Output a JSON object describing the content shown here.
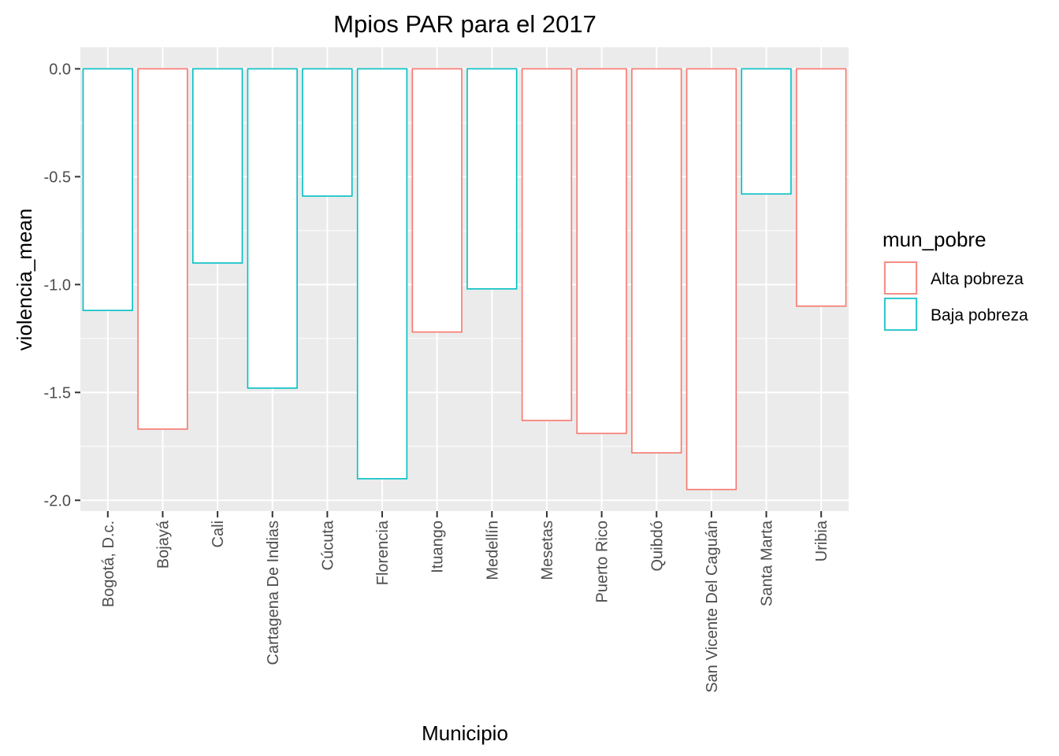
{
  "chart_data": {
    "type": "bar",
    "title": "Mpios PAR para el 2017",
    "xlabel": "Municipio",
    "ylabel": "violencia_mean",
    "ylim": [
      -2.05,
      0.1
    ],
    "y_ticks": [
      0.0,
      -0.5,
      -1.0,
      -1.5,
      -2.0
    ],
    "y_tick_labels": [
      "0.0",
      "-0.5",
      "-1.0",
      "-1.5",
      "-2.0"
    ],
    "categories": [
      "Bogotá, D.c.",
      "Bojayá",
      "Cali",
      "Cartagena De Indias",
      "Cúcuta",
      "Florencia",
      "Ituango",
      "Medellín",
      "Mesetas",
      "Puerto Rico",
      "Quibdó",
      "San Vicente Del Caguán",
      "Santa Marta",
      "Uribia"
    ],
    "values": [
      -1.12,
      -1.67,
      -0.9,
      -1.48,
      -0.59,
      -1.9,
      -1.22,
      -1.02,
      -1.63,
      -1.69,
      -1.78,
      -1.95,
      -0.58,
      -1.1
    ],
    "groups": [
      "Baja pobreza",
      "Alta pobreza",
      "Baja pobreza",
      "Baja pobreza",
      "Baja pobreza",
      "Baja pobreza",
      "Alta pobreza",
      "Baja pobreza",
      "Alta pobreza",
      "Alta pobreza",
      "Alta pobreza",
      "Alta pobreza",
      "Baja pobreza",
      "Alta pobreza"
    ],
    "legend": {
      "title": "mun_pobre",
      "position": "right",
      "entries": [
        {
          "label": "Alta pobreza",
          "color": "#F8766D"
        },
        {
          "label": "Baja pobreza",
          "color": "#00BFC4"
        }
      ]
    },
    "grid": true,
    "colors": {
      "panel_background": "#EBEBEB",
      "grid": "#FFFFFF",
      "bar_fill": "#FFFFFF"
    }
  }
}
